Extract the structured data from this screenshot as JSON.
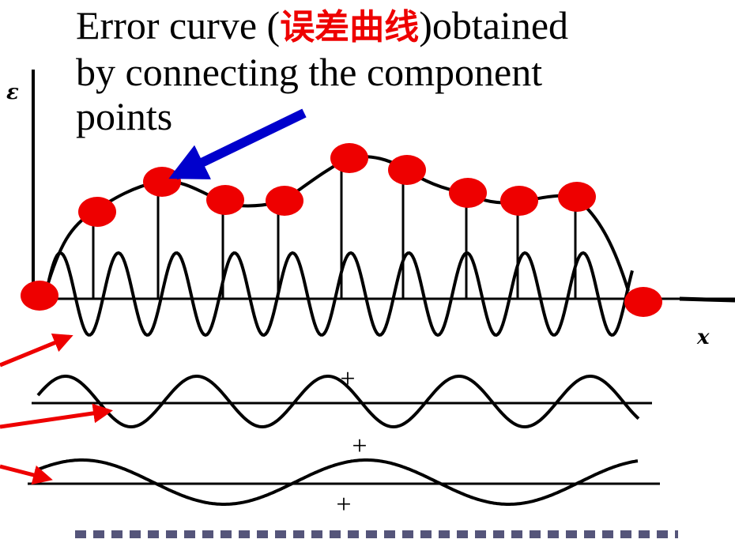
{
  "caption": {
    "line1_before": "Error curve (",
    "line1_highlight": "误差曲线",
    "line1_after": ")obtained",
    "line2": "by connecting the component",
    "line3": "points"
  },
  "axes": {
    "y_label": "ε",
    "x_label": "x"
  },
  "plus_signs": [
    "+",
    "+",
    "+"
  ],
  "colors": {
    "curve": "#000000",
    "points": "#ee0000",
    "highlight_text": "#ee0000",
    "blue_arrow": "#0000cc",
    "red_arrows": "#ee0000",
    "dashed_line": "#55557a"
  }
}
